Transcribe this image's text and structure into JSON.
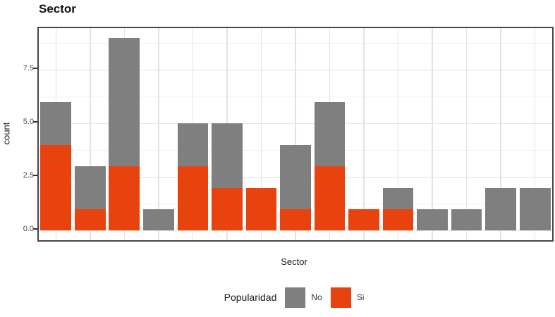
{
  "chart_data": {
    "type": "bar",
    "stacked": true,
    "title": "Sector",
    "xlabel": "Sector",
    "ylabel": "count",
    "n_categories": 15,
    "x_tick_labels_visible": false,
    "yticks": [
      "0.0",
      "2.5",
      "5.0",
      "7.5"
    ],
    "ytick_values": [
      0.0,
      2.5,
      5.0,
      7.5
    ],
    "ylim": [
      -0.45,
      9.45
    ],
    "grid": true,
    "series": [
      {
        "name": "No",
        "color": "#7f7f7f",
        "values": [
          2,
          2,
          6,
          1,
          2,
          3,
          0,
          3,
          3,
          0,
          1,
          1,
          1,
          2,
          2
        ]
      },
      {
        "name": "Si",
        "color": "#e8430e",
        "values": [
          4,
          1,
          3,
          0,
          3,
          2,
          2,
          1,
          3,
          1,
          1,
          0,
          0,
          0,
          0
        ]
      }
    ],
    "totals": [
      6,
      3,
      9,
      1,
      5,
      5,
      2,
      4,
      6,
      1,
      2,
      1,
      1,
      2,
      2
    ],
    "legend": {
      "title": "Popularidad",
      "position": "bottom",
      "entries": [
        {
          "label": "No",
          "color": "#7f7f7f"
        },
        {
          "label": "Si",
          "color": "#e8430e"
        }
      ]
    },
    "colors": {
      "panel_border": "#464646",
      "grid_major": "#e3e3e3",
      "grid_minor": "#f2f2f2",
      "axis_text": "#4d4d4d"
    }
  }
}
